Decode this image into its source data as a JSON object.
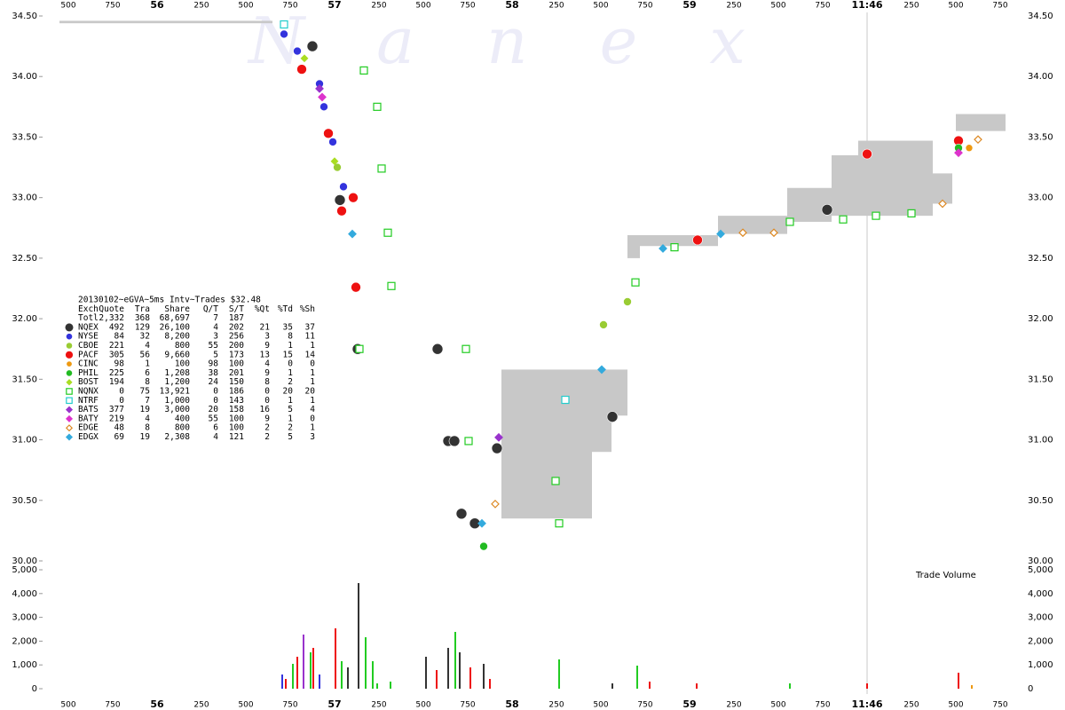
{
  "chart_data": {
    "type": "scatter",
    "watermark": "N a n e x",
    "volume_label": "Trade Volume",
    "xlim": [
      55.4,
      60.8
    ],
    "xticks": [
      {
        "value": 55.5,
        "label": "500"
      },
      {
        "value": 55.75,
        "label": "750"
      },
      56,
      {
        "value": 56.25,
        "label": "250"
      },
      {
        "value": 56.5,
        "label": "500"
      },
      {
        "value": 56.75,
        "label": "750"
      },
      57,
      {
        "value": 57.25,
        "label": "250"
      },
      {
        "value": 57.5,
        "label": "500"
      },
      {
        "value": 57.75,
        "label": "750"
      },
      58,
      {
        "value": 58.25,
        "label": "250"
      },
      {
        "value": 58.5,
        "label": "500"
      },
      {
        "value": 58.75,
        "label": "750"
      },
      59,
      {
        "value": 59.25,
        "label": "250"
      },
      {
        "value": 59.5,
        "label": "500"
      },
      {
        "value": 59.75,
        "label": "750"
      },
      {
        "value": 60,
        "label": "11:46"
      },
      {
        "value": 60.25,
        "label": "250"
      },
      {
        "value": 60.5,
        "label": "500"
      },
      {
        "value": 60.75,
        "label": "750"
      }
    ],
    "ylim": [
      30,
      34.5
    ],
    "yticks": [
      {
        "value": 30,
        "label": "30.00"
      },
      {
        "value": 30.5,
        "label": "30.50"
      },
      {
        "value": 31,
        "label": "31.00"
      },
      {
        "value": 31.5,
        "label": "31.50"
      },
      {
        "value": 32,
        "label": "32.00"
      },
      {
        "value": 32.5,
        "label": "32.50"
      },
      {
        "value": 33,
        "label": "33.00"
      },
      {
        "value": 33.5,
        "label": "33.50"
      },
      {
        "value": 34,
        "label": "34.00"
      },
      {
        "value": 34.5,
        "label": "34.50"
      }
    ],
    "y2lim": [
      0,
      5000
    ],
    "y2ticks": [
      0,
      {
        "value": 1000,
        "label": "1,000"
      },
      {
        "value": 2000,
        "label": "2,000"
      },
      {
        "value": 3000,
        "label": "3,000"
      },
      {
        "value": 4000,
        "label": "4,000"
      },
      {
        "value": 5000,
        "label": "5,000"
      }
    ],
    "spread": {
      "color": "#c8c8c8",
      "segments": [
        {
          "x": [
            55.45,
            56.65
          ],
          "low": 34.44,
          "high": 34.46
        },
        {
          "x": [
            57.94,
            58.45
          ],
          "low": 30.35,
          "high": 31.58
        },
        {
          "x": [
            58.45,
            58.56
          ],
          "low": 30.9,
          "high": 31.58
        },
        {
          "x": [
            58.56,
            58.65
          ],
          "low": 31.2,
          "high": 31.58
        },
        {
          "x": [
            58.65,
            58.72
          ],
          "low": 32.5,
          "high": 32.69
        },
        {
          "x": [
            58.72,
            59.16
          ],
          "low": 32.6,
          "high": 32.69
        },
        {
          "x": [
            59.16,
            59.55
          ],
          "low": 32.7,
          "high": 32.85
        },
        {
          "x": [
            59.55,
            59.8
          ],
          "low": 32.8,
          "high": 33.08
        },
        {
          "x": [
            59.8,
            59.95
          ],
          "low": 32.85,
          "high": 33.35
        },
        {
          "x": [
            59.95,
            60.37
          ],
          "low": 32.85,
          "high": 33.47
        },
        {
          "x": [
            60.37,
            60.48
          ],
          "low": 32.95,
          "high": 33.2
        },
        {
          "x": [
            60.5,
            60.78
          ],
          "low": 33.55,
          "high": 33.69
        }
      ]
    },
    "table": {
      "title": "20130102~eGVA~5ms Intv~Trades $32.48",
      "columns": [
        "Exch",
        "Quote",
        "Tra",
        "Share",
        "Q/T",
        "S/T",
        "%Qt",
        "%Td",
        "%Sh"
      ],
      "total": {
        "label": "Totl",
        "stats": [
          "2,332",
          "368",
          "68,697",
          "7",
          "187"
        ]
      }
    },
    "series": [
      {
        "name": "NQEX",
        "color": "#333333",
        "marker": "circle",
        "size": 6,
        "hollow": false,
        "stats": [
          "492",
          "129",
          "26,100",
          "4",
          "202",
          "21",
          "35",
          "37"
        ],
        "x": [
          56.875,
          57.03,
          57.13,
          57.58,
          57.64,
          57.675,
          57.715,
          57.79,
          57.915,
          58.565,
          59.775
        ],
        "values": [
          34.25,
          32.98,
          31.75,
          31.75,
          30.99,
          30.99,
          30.39,
          30.31,
          30.93,
          31.19,
          32.9
        ]
      },
      {
        "name": "NYSE",
        "color": "#3333dd",
        "marker": "circle",
        "size": 4.5,
        "hollow": false,
        "stats": [
          "84",
          "32",
          "8,200",
          "3",
          "256",
          "3",
          "8",
          "11"
        ],
        "x": [
          56.715,
          56.79,
          56.915,
          56.94,
          56.99,
          57.05
        ],
        "values": [
          34.35,
          34.21,
          33.94,
          33.75,
          33.46,
          33.09
        ]
      },
      {
        "name": "CBOE",
        "color": "#99cc33",
        "marker": "circle",
        "size": 4.5,
        "hollow": false,
        "stats": [
          "221",
          "4",
          "800",
          "55",
          "200",
          "9",
          "1",
          "1"
        ],
        "x": [
          57.015,
          58.515,
          58.65
        ],
        "values": [
          33.25,
          31.95,
          32.14
        ]
      },
      {
        "name": "PACF",
        "color": "#ee1111",
        "marker": "circle",
        "size": 5.5,
        "hollow": false,
        "stats": [
          "305",
          "56",
          "9,660",
          "5",
          "173",
          "13",
          "15",
          "14"
        ],
        "x": [
          56.815,
          56.965,
          57.105,
          57.04,
          57.12,
          59.045,
          60.0,
          60.515
        ],
        "values": [
          34.06,
          33.53,
          33.0,
          32.89,
          32.26,
          32.65,
          33.36,
          33.47
        ]
      },
      {
        "name": "CINC",
        "color": "#ee9911",
        "marker": "circle",
        "size": 4,
        "hollow": false,
        "stats": [
          "98",
          "1",
          "100",
          "98",
          "100",
          "4",
          "0",
          "0"
        ],
        "x": [
          60.575
        ],
        "values": [
          33.41
        ]
      },
      {
        "name": "PHIL",
        "color": "#22bb22",
        "marker": "circle",
        "size": 4.5,
        "hollow": false,
        "stats": [
          "225",
          "6",
          "1,208",
          "38",
          "201",
          "9",
          "1",
          "1"
        ],
        "x": [
          57.84,
          60.515
        ],
        "values": [
          30.12,
          33.41
        ]
      },
      {
        "name": "BOST",
        "color": "#aadd22",
        "marker": "diamond",
        "size": 4,
        "hollow": false,
        "stats": [
          "194",
          "8",
          "1,200",
          "24",
          "150",
          "8",
          "2",
          "1"
        ],
        "x": [
          56.83,
          57.0
        ],
        "values": [
          34.15,
          33.3
        ]
      },
      {
        "name": "NQNX",
        "color": "#22cc22",
        "marker": "square",
        "size": 4,
        "hollow": true,
        "stats": [
          "0",
          "75",
          "13,921",
          "0",
          "186",
          "0",
          "20",
          "20"
        ],
        "x": [
          57.165,
          57.24,
          57.265,
          57.3,
          57.32,
          57.14,
          57.74,
          57.755,
          58.245,
          58.265,
          58.695,
          58.915,
          59.565,
          59.865,
          60.05,
          60.25
        ],
        "values": [
          34.05,
          33.75,
          33.24,
          32.71,
          32.27,
          31.75,
          31.75,
          30.99,
          30.66,
          30.31,
          32.3,
          32.59,
          32.8,
          32.82,
          32.85,
          32.87
        ]
      },
      {
        "name": "NTRF",
        "color": "#22cccc",
        "marker": "square",
        "size": 4,
        "hollow": true,
        "stats": [
          "0",
          "7",
          "1,000",
          "0",
          "143",
          "0",
          "1",
          "1"
        ],
        "x": [
          58.3,
          56.715
        ],
        "values": [
          31.33,
          34.43
        ]
      },
      {
        "name": "BATS",
        "color": "#9933cc",
        "marker": "diamond",
        "size": 4.5,
        "hollow": false,
        "stats": [
          "377",
          "19",
          "3,000",
          "20",
          "158",
          "16",
          "5",
          "4"
        ],
        "x": [
          57.925,
          56.915
        ],
        "values": [
          31.02,
          33.9
        ]
      },
      {
        "name": "BATY",
        "color": "#dd33cc",
        "marker": "diamond",
        "size": 4.5,
        "hollow": false,
        "stats": [
          "219",
          "4",
          "400",
          "55",
          "100",
          "9",
          "1",
          "0"
        ],
        "x": [
          60.515,
          56.93
        ],
        "values": [
          33.37,
          33.83
        ]
      },
      {
        "name": "EDGE",
        "color": "#dd8822",
        "marker": "diamond",
        "size": 4,
        "hollow": true,
        "stats": [
          "48",
          "8",
          "800",
          "6",
          "100",
          "2",
          "2",
          "1"
        ],
        "x": [
          57.905,
          59.3,
          59.475,
          60.425,
          60.625
        ],
        "values": [
          30.47,
          32.71,
          32.71,
          32.95,
          33.48
        ]
      },
      {
        "name": "EDGX",
        "color": "#33aadd",
        "marker": "diamond",
        "size": 4.5,
        "hollow": false,
        "stats": [
          "69",
          "19",
          "2,308",
          "4",
          "121",
          "2",
          "5",
          "3"
        ],
        "x": [
          57.1,
          58.505,
          58.85,
          59.175,
          57.83
        ],
        "values": [
          32.7,
          31.58,
          32.58,
          32.7,
          30.31
        ]
      }
    ],
    "volume": {
      "x": [
        56.705,
        56.725,
        56.765,
        56.79,
        56.825,
        56.865,
        56.88,
        56.915,
        57.005,
        57.04,
        57.075,
        57.135,
        57.175,
        57.215,
        57.24,
        57.315,
        57.515,
        57.575,
        57.64,
        57.68,
        57.705,
        57.765,
        57.84,
        57.875,
        58.265,
        58.565,
        58.705,
        58.775,
        59.04,
        59.565,
        60.0,
        60.515,
        60.59
      ],
      "values": [
        597,
        410,
        1045,
        1343,
        2276,
        1530,
        1716,
        597,
        2537,
        1157,
        896,
        4440,
        2164,
        1157,
        224,
        299,
        1343,
        784,
        1716,
        2388,
        1530,
        896,
        1045,
        410,
        1231,
        224,
        970,
        299,
        224,
        224,
        224,
        672,
        150
      ],
      "colors": [
        "#3333dd",
        "#ee1111",
        "#22cc22",
        "#ee1111",
        "#9933cc",
        "#22cc22",
        "#ee1111",
        "#3333dd",
        "#ee1111",
        "#22cc22",
        "#333333",
        "#333333",
        "#22cc22",
        "#22cc22",
        "#22cc22",
        "#22cc22",
        "#333333",
        "#ee1111",
        "#333333",
        "#22cc22",
        "#333333",
        "#ee1111",
        "#333333",
        "#ee1111",
        "#22cc22",
        "#333333",
        "#22cc22",
        "#ee1111",
        "#ee1111",
        "#22cc22",
        "#ee1111",
        "#ee1111",
        "#ee9911"
      ]
    }
  }
}
